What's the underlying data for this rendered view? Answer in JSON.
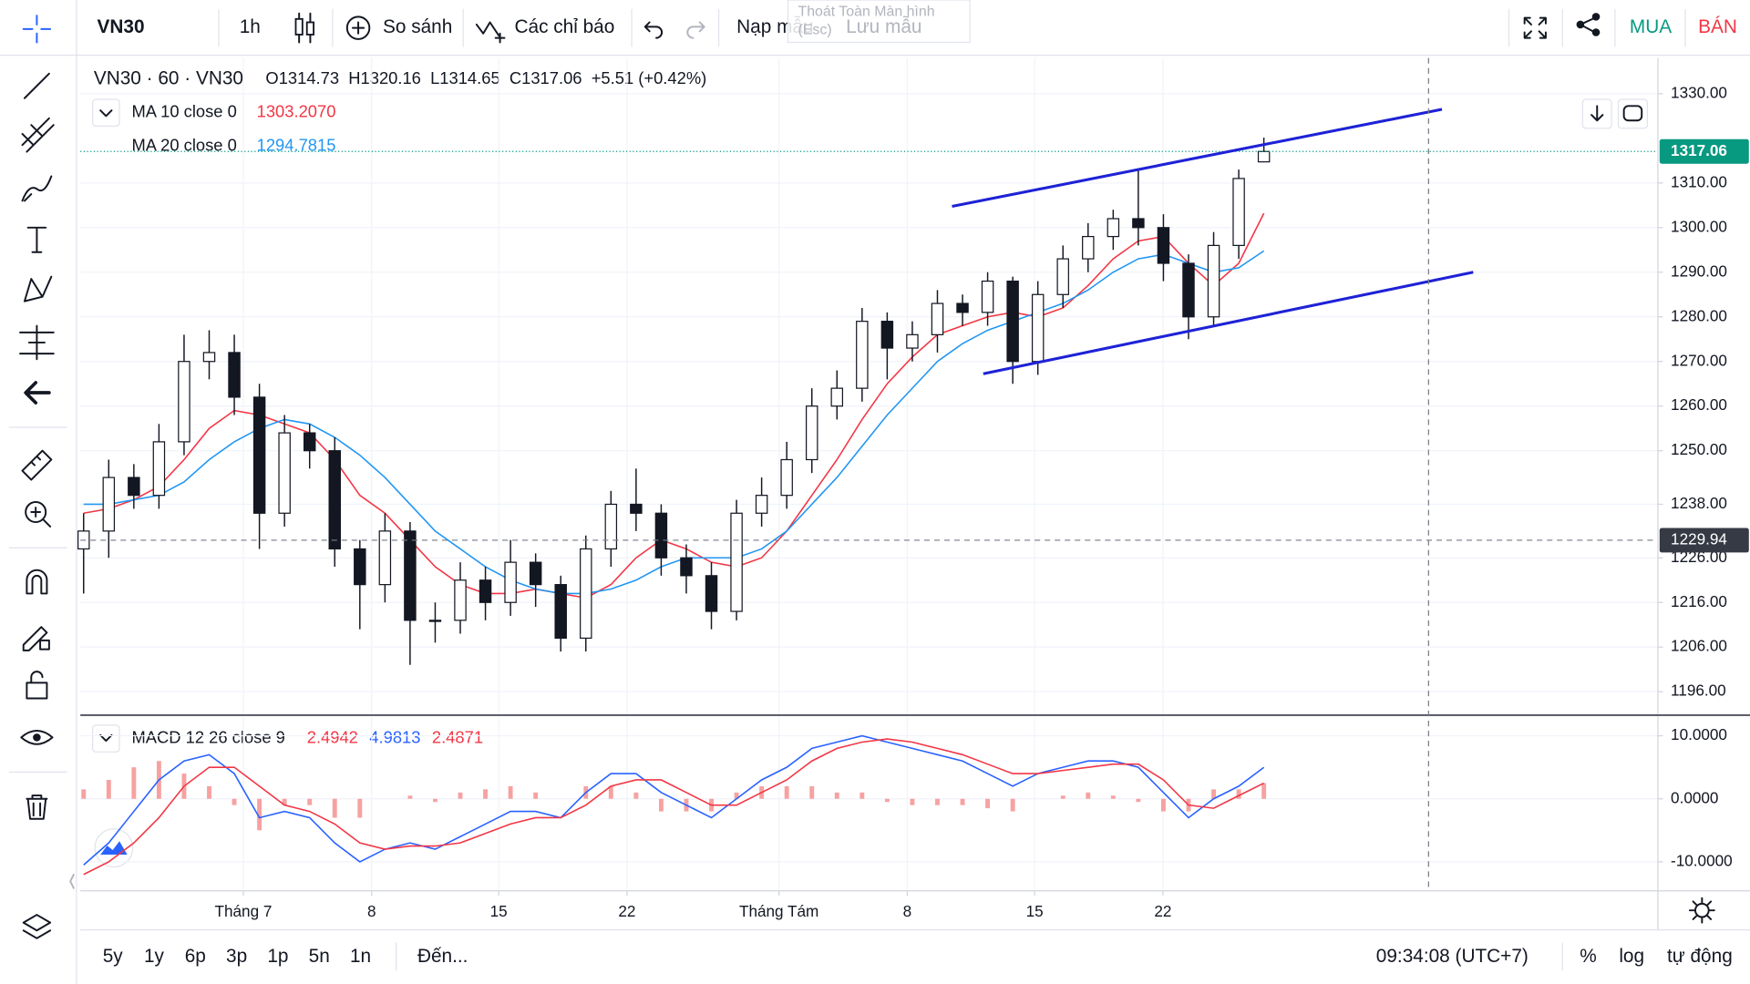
{
  "toolbar": {
    "symbol": "VN30",
    "interval": "1h",
    "compare": "So sánh",
    "indicators": "Các chỉ báo",
    "load_template": "Nạp mẫu",
    "save_template": "Lưu mẫu",
    "tooltip": [
      "Thoát Toàn Màn hình",
      "(Esc)"
    ],
    "buy": "MUA",
    "sell": "BÁN"
  },
  "legend": {
    "title": "VN30 · 60 · VN30",
    "ohlc": "O1314.73  H1320.16  L1314.65  C1317.06  +5.51 (+0.42%)"
  },
  "chart_data": [
    {
      "type": "candlestick",
      "open": [
        1228,
        1232,
        1244,
        1240,
        1252,
        1270,
        1272,
        1262,
        1236,
        1254,
        1250,
        1228,
        1220,
        1232,
        1212,
        1212,
        1221,
        1216,
        1225,
        1220,
        1208,
        1228,
        1238,
        1236,
        1226,
        1222,
        1214,
        1236,
        1240,
        1248,
        1260,
        1264,
        1279,
        1273,
        1276,
        1283,
        1281,
        1288,
        1270,
        1285,
        1293,
        1298,
        1302,
        1300,
        1292,
        1280,
        1296,
        1314.73
      ],
      "high": [
        1236,
        1248,
        1247,
        1256,
        1276,
        1277,
        1276,
        1265,
        1258,
        1256,
        1253,
        1230,
        1236,
        1234,
        1216,
        1225,
        1224,
        1230,
        1227,
        1222,
        1231,
        1241,
        1246,
        1238,
        1229,
        1225,
        1239,
        1244,
        1252,
        1264,
        1268,
        1282,
        1281,
        1279,
        1286,
        1285,
        1290,
        1289,
        1288,
        1296,
        1301,
        1304,
        1313,
        1303,
        1294,
        1299,
        1313,
        1320.16
      ],
      "low": [
        1218,
        1226,
        1237,
        1237,
        1249,
        1266,
        1258,
        1228,
        1233,
        1246,
        1224,
        1210,
        1216,
        1202,
        1207,
        1209,
        1212,
        1213,
        1215,
        1205,
        1205,
        1224,
        1232,
        1222,
        1218,
        1210,
        1212,
        1233,
        1237,
        1245,
        1257,
        1261,
        1266,
        1270,
        1272,
        1278,
        1278,
        1265,
        1267,
        1282,
        1290,
        1295,
        1296,
        1288,
        1275,
        1278,
        1293,
        1314.65
      ],
      "close": [
        1232,
        1244,
        1240,
        1252,
        1270,
        1272,
        1262,
        1236,
        1254,
        1250,
        1228,
        1220,
        1232,
        1212,
        1212,
        1221,
        1216,
        1225,
        1220,
        1208,
        1228,
        1238,
        1236,
        1226,
        1222,
        1214,
        1236,
        1240,
        1248,
        1260,
        1264,
        1279,
        1273,
        1276,
        1283,
        1281,
        1288,
        1270,
        1285,
        1293,
        1298,
        1302,
        1300,
        1292,
        1280,
        1296,
        1311,
        1317.06
      ],
      "up_color": "#ffffff",
      "down_color": "#131722",
      "wick_color": "#131722",
      "series": [
        {
          "name": "MA 10 close 0",
          "legend_value": "1303.2070",
          "color": "#f23645",
          "values": [
            1236,
            1237,
            1239,
            1242,
            1248,
            1255,
            1259,
            1258,
            1256,
            1254,
            1248,
            1240,
            1236,
            1230,
            1224,
            1220,
            1218,
            1218,
            1219,
            1218,
            1217,
            1220,
            1226,
            1230,
            1228,
            1225,
            1224,
            1226,
            1232,
            1240,
            1248,
            1257,
            1265,
            1271,
            1276,
            1278,
            1280,
            1281,
            1280,
            1282,
            1287,
            1293,
            1297,
            1298,
            1292,
            1287,
            1292,
            1303.207
          ]
        },
        {
          "name": "MA 20 close 0",
          "legend_value": "1294.7815",
          "color": "#2196f3",
          "values": [
            1238,
            1238,
            1239,
            1240,
            1243,
            1248,
            1252,
            1255,
            1257,
            1256,
            1253,
            1249,
            1244,
            1238,
            1232,
            1228,
            1224,
            1221,
            1219,
            1218,
            1218,
            1219,
            1221,
            1224,
            1226,
            1226,
            1226,
            1228,
            1232,
            1238,
            1244,
            1251,
            1258,
            1264,
            1270,
            1274,
            1277,
            1279,
            1281,
            1283,
            1286,
            1290,
            1293,
            1294,
            1292,
            1290,
            1291,
            1294.7815
          ]
        }
      ],
      "last_price": 1317.06,
      "last_price_color": "#089981",
      "crosshair_price": 1229.94,
      "xlim": [
        -0.13,
        62.67
      ],
      "xticks": [
        {
          "value": 6.36,
          "label": "Tháng 7"
        },
        {
          "value": 11.47,
          "label": "8"
        },
        {
          "value": 16.53,
          "label": "15"
        },
        {
          "value": 21.64,
          "label": "22"
        },
        {
          "value": 27.69,
          "label": "Tháng Tám"
        },
        {
          "value": 32.8,
          "label": "8"
        },
        {
          "value": 37.87,
          "label": "15"
        },
        {
          "value": 42.98,
          "label": "22"
        }
      ],
      "ylim": [
        1191,
        1338
      ],
      "yticks": [
        {
          "value": 1330,
          "label": "1330.00"
        },
        {
          "value": 1310,
          "label": "1310.00"
        },
        {
          "value": 1300,
          "label": "1300.00"
        },
        {
          "value": 1290,
          "label": "1290.00"
        },
        {
          "value": 1280,
          "label": "1280.00"
        },
        {
          "value": 1270,
          "label": "1270.00"
        },
        {
          "value": 1260,
          "label": "1260.00"
        },
        {
          "value": 1250,
          "label": "1250.00"
        },
        {
          "value": 1238,
          "label": "1238.00"
        },
        {
          "value": 1226,
          "label": "1226.00"
        },
        {
          "value": 1216,
          "label": "1216.00"
        },
        {
          "value": 1206,
          "label": "1206.00"
        },
        {
          "value": 1196,
          "label": "1196.00"
        }
      ],
      "grid": true
    },
    {
      "type": "macd",
      "title": "MACD 12 26 close 9",
      "histogram": {
        "legend_value": "2.4942",
        "color": "#f7a1a1",
        "values": [
          1.5,
          3,
          5,
          6,
          4,
          2,
          -1,
          -5,
          -1,
          -1,
          -3,
          -3,
          0,
          0.5,
          -0.5,
          1,
          1.5,
          2,
          1,
          0,
          2,
          2,
          1,
          -2,
          -2,
          -2,
          1,
          2,
          2,
          2,
          1,
          1,
          -0.5,
          -1,
          -1,
          -1,
          -1.5,
          -2,
          0,
          0.5,
          1,
          0.5,
          -0.5,
          -2,
          -2,
          1.5,
          1.5,
          2.4942
        ]
      },
      "series": [
        {
          "legend_value": "4.9813",
          "color": "#2962ff",
          "values": [
            -10.5,
            -7,
            -2,
            3,
            6,
            7,
            4,
            -3,
            -2,
            -3,
            -7,
            -10,
            -8,
            -7,
            -8,
            -6,
            -4,
            -2,
            -2,
            -3,
            1,
            4,
            4,
            1,
            -1,
            -3,
            0,
            3,
            5,
            8,
            9,
            10,
            9,
            8,
            7,
            6,
            4,
            2,
            4,
            5,
            6,
            6,
            5,
            1,
            -3,
            0,
            2,
            4.9813
          ]
        },
        {
          "legend_value": "2.4871",
          "color": "#f23645",
          "values": [
            -12,
            -10,
            -7,
            -3,
            2,
            5,
            5,
            2,
            -1,
            -2,
            -4,
            -7,
            -8,
            -7.5,
            -7.5,
            -7,
            -5.5,
            -4,
            -3,
            -3,
            -1,
            2,
            3,
            3,
            1,
            -1,
            -1,
            1,
            3,
            6,
            8,
            9,
            9.5,
            9,
            8,
            7,
            5.5,
            4,
            4,
            4.5,
            5,
            5.5,
            5.5,
            3,
            -1,
            -1.5,
            0.5,
            2.4871
          ]
        }
      ],
      "xlim": [
        -0.13,
        62.67
      ],
      "ylim": [
        -14.34,
        13.1
      ],
      "yticks": [
        {
          "value": 10,
          "label": "10.0000"
        },
        {
          "value": 0,
          "label": "0.0000"
        },
        {
          "value": -10,
          "label": "-10.0000"
        }
      ],
      "grid": true
    }
  ],
  "bottom_bar": {
    "ranges": [
      "5y",
      "1y",
      "6p",
      "3p",
      "1p",
      "5n",
      "1n"
    ],
    "goto": "Đến...",
    "time": "09:34:08 (UTC+7)",
    "percent": "%",
    "log": "log",
    "auto": "tự động"
  }
}
